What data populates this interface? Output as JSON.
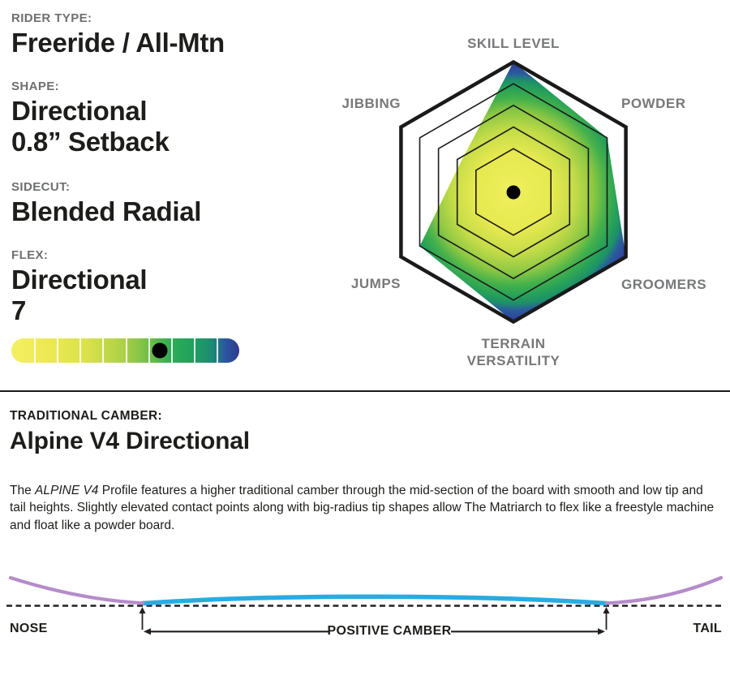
{
  "specs": {
    "rider_type": {
      "label": "RIDER TYPE:",
      "value": "Freeride / All-Mtn"
    },
    "shape": {
      "label": "SHAPE:",
      "value": "Directional\n0.8” Setback"
    },
    "sidecut": {
      "label": "SIDECUT:",
      "value": "Blended Radial"
    },
    "flex": {
      "label": "FLEX:",
      "value": "Directional\n7"
    }
  },
  "camber_section": {
    "heading": "TRADITIONAL CAMBER:",
    "title": "Alpine V4 Directional",
    "description": {
      "lead": "The ",
      "italic": "ALPINE V4",
      "body": " Profile features a higher traditional camber through the mid-section of the board with smooth and low tip and tail heights.  Slightly elevated contact points along with big-radius tip shapes allow The Matriarch to flex like a freestyle machine and float like a powder board."
    }
  },
  "chart_data": [
    {
      "type": "radar",
      "title": "",
      "grid_shape": "hexagon",
      "grid_color": "#1a1a1a",
      "rings": [
        2,
        3,
        4,
        5,
        6
      ],
      "scale_max": 6,
      "center_dot_color": "#000000",
      "axes": [
        {
          "label": "SKILL LEVEL",
          "value": 6
        },
        {
          "label": "POWDER",
          "value": 5
        },
        {
          "label": "GROOMERS",
          "value": 6
        },
        {
          "label": "TERRAIN VERSATILITY",
          "value": 6
        },
        {
          "label": "JUMPS",
          "value": 5
        },
        {
          "label": "JIBBING",
          "value": 2.8
        }
      ],
      "fill_gradient": [
        {
          "offset": 0.0,
          "color": "#eeef5d"
        },
        {
          "offset": 0.3,
          "color": "#e7e950"
        },
        {
          "offset": 0.48,
          "color": "#c3db48"
        },
        {
          "offset": 0.62,
          "color": "#8bc743"
        },
        {
          "offset": 0.72,
          "color": "#44b04c"
        },
        {
          "offset": 0.8,
          "color": "#27a158"
        },
        {
          "offset": 0.86,
          "color": "#1e9069"
        },
        {
          "offset": 0.91,
          "color": "#2a5d9d"
        },
        {
          "offset": 1.0,
          "color": "#32389b"
        }
      ]
    },
    {
      "type": "gauge",
      "label": "FLEX",
      "value": 7,
      "scale_min": 1,
      "scale_max": 10,
      "segments": 10,
      "marker_segment": 7,
      "marker_color": "#000000",
      "gradient": [
        {
          "offset": 0.0,
          "color": "#f4ef64"
        },
        {
          "offset": 0.18,
          "color": "#ebe851"
        },
        {
          "offset": 0.34,
          "color": "#d8e14b"
        },
        {
          "offset": 0.5,
          "color": "#a9d046"
        },
        {
          "offset": 0.62,
          "color": "#67bb4a"
        },
        {
          "offset": 0.7,
          "color": "#2fac55"
        },
        {
          "offset": 0.8,
          "color": "#1fa05f"
        },
        {
          "offset": 0.88,
          "color": "#1f8a73"
        },
        {
          "offset": 0.94,
          "color": "#2b56a0"
        },
        {
          "offset": 1.0,
          "color": "#2e3a8d"
        }
      ]
    },
    {
      "type": "profile",
      "label": "TRADITIONAL CAMBER",
      "nose_label": "NOSE",
      "tail_label": "TAIL",
      "camber_zone_label": "POSITIVE CAMBER",
      "camber_color": "#29abe2",
      "tip_color": "#b58bc9",
      "baseline_color": "#231f20"
    }
  ]
}
